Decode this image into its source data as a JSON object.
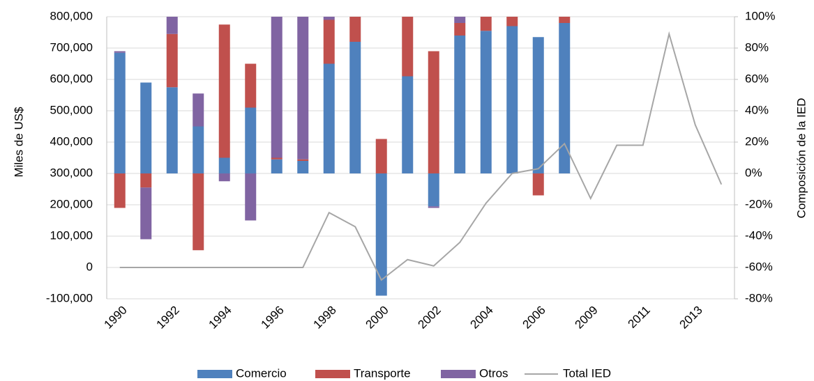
{
  "chart_data": {
    "type": "bar",
    "y_label": "Miles de US$",
    "y2_label": "Composición de la IED",
    "categories": [
      "1990",
      null,
      "1992",
      null,
      "1994",
      null,
      "1996",
      null,
      "1998",
      null,
      "2000",
      null,
      "2002",
      null,
      "2004",
      null,
      "2006",
      null,
      "2009",
      null,
      "2011",
      null,
      "2013",
      null
    ],
    "series": [
      {
        "name": "Comercio",
        "type": "bar",
        "axis": "y2",
        "color": "#4f81bd",
        "values": [
          77,
          58,
          55,
          30,
          10,
          42,
          9,
          8,
          70,
          84,
          -78,
          62,
          -21,
          88,
          91,
          94,
          87,
          96,
          null,
          null,
          null,
          null,
          null,
          null
        ]
      },
      {
        "name": "Transporte",
        "type": "bar",
        "axis": "y2",
        "color": "#c0504d",
        "values": [
          -22,
          -9,
          34,
          -49,
          85,
          28,
          1,
          1,
          28,
          16,
          22,
          38,
          78,
          8,
          9,
          6,
          -14,
          4,
          null,
          null,
          null,
          null,
          null,
          null
        ]
      },
      {
        "name": "Otros",
        "type": "bar",
        "axis": "y2",
        "color": "#8064a2",
        "values": [
          1,
          -33,
          11,
          21,
          -5,
          -30,
          90,
          91,
          2,
          0,
          0,
          0,
          -1,
          4,
          0,
          0,
          0,
          0,
          null,
          null,
          null,
          null,
          null,
          null
        ]
      },
      {
        "name": "Total IED",
        "type": "line",
        "color": "#a6a6a6",
        "values": [
          0,
          0,
          0,
          0,
          0,
          0,
          0,
          0,
          175000,
          130000,
          -40000,
          25000,
          5000,
          80000,
          205000,
          300000,
          315000,
          395000,
          220000,
          390000,
          390000,
          745000,
          455000,
          265000
        ]
      }
    ],
    "ylim": [
      -100000,
      800000
    ],
    "yticks": [
      {
        "value": -100000,
        "label": "-100,000"
      },
      0,
      {
        "value": 100000,
        "label": "100,000"
      },
      {
        "value": 200000,
        "label": "200,000"
      },
      {
        "value": 300000,
        "label": "300,000"
      },
      {
        "value": 400000,
        "label": "400,000"
      },
      {
        "value": 500000,
        "label": "500,000"
      },
      {
        "value": 600000,
        "label": "600,000"
      },
      {
        "value": 700000,
        "label": "700,000"
      },
      {
        "value": 800000,
        "label": "800,000"
      }
    ],
    "y2lim": [
      -80,
      100
    ],
    "y2ticks": [
      {
        "value": -80,
        "label": "-80%"
      },
      {
        "value": -60,
        "label": "-60%"
      },
      {
        "value": -40,
        "label": "-40%"
      },
      {
        "value": -20,
        "label": "-20%"
      },
      {
        "value": 0,
        "label": "0%"
      },
      {
        "value": 20,
        "label": "20%"
      },
      {
        "value": 40,
        "label": "40%"
      },
      {
        "value": 60,
        "label": "60%"
      },
      {
        "value": 80,
        "label": "80%"
      },
      {
        "value": 100,
        "label": "100%"
      }
    ],
    "grid": true,
    "legend": "bottom"
  }
}
